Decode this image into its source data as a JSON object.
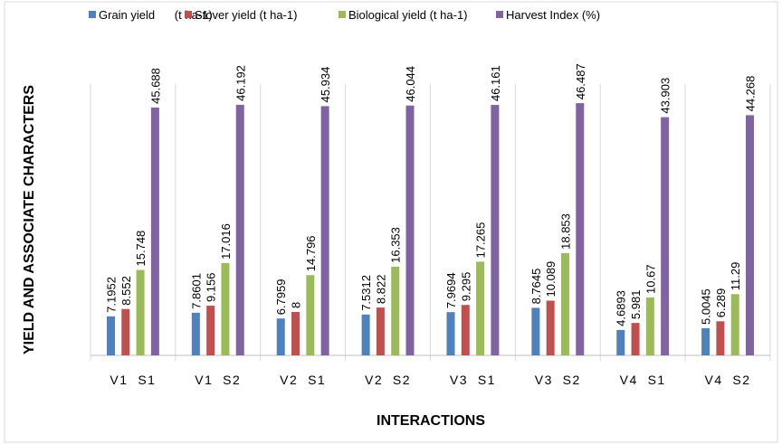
{
  "chart_data": {
    "type": "bar",
    "title": "",
    "xlabel": "INTERACTIONS",
    "ylabel": "YIELD AND ASSOCIATE CHARACTERS",
    "categories": [
      "V1  S1",
      "V1  S2",
      "V2  S1",
      "V2  S2",
      "V3  S1",
      "V3  S2",
      "V4  S1",
      "V4  S2"
    ],
    "ylim": [
      0,
      50
    ],
    "grid": "vertical category separators",
    "legend_position": "top",
    "series": [
      {
        "name": "Grain yield      (t ha-1)",
        "color": "#4F81BD",
        "values": [
          7.1952,
          7.8601,
          6.7959,
          7.5312,
          7.9694,
          8.7645,
          4.6893,
          5.0045
        ],
        "labels": [
          "7.1952",
          "7.8601",
          "6.7959",
          "7.5312",
          "7.9694",
          "8.7645",
          "4.6893",
          "5.0045"
        ]
      },
      {
        "name": "Stover yield (t ha-1)",
        "color": "#C0504D",
        "values": [
          8.552,
          9.156,
          8,
          8.822,
          9.295,
          10.089,
          5.981,
          6.289
        ],
        "labels": [
          "8.552",
          "9.156",
          "8",
          "8.822",
          "9.295",
          "10.089",
          "5.981",
          "6.289"
        ]
      },
      {
        "name": "Biological yield (t ha-1)",
        "color": "#9BBB59",
        "values": [
          15.748,
          17.016,
          14.796,
          16.353,
          17.265,
          18.853,
          10.67,
          11.29
        ],
        "labels": [
          "15.748",
          "17.016",
          "14.796",
          "16.353",
          "17.265",
          "18.853",
          "10.67",
          "11.29"
        ]
      },
      {
        "name": "Harvest Index (%)",
        "color": "#8064A2",
        "values": [
          45.688,
          46.192,
          45.934,
          46.044,
          46.161,
          46.487,
          43.903,
          44.268
        ],
        "labels": [
          "45.688",
          "46.192",
          "45.934",
          "46.044",
          "46.161",
          "46.487",
          "43.903",
          "44.268"
        ]
      }
    ]
  }
}
